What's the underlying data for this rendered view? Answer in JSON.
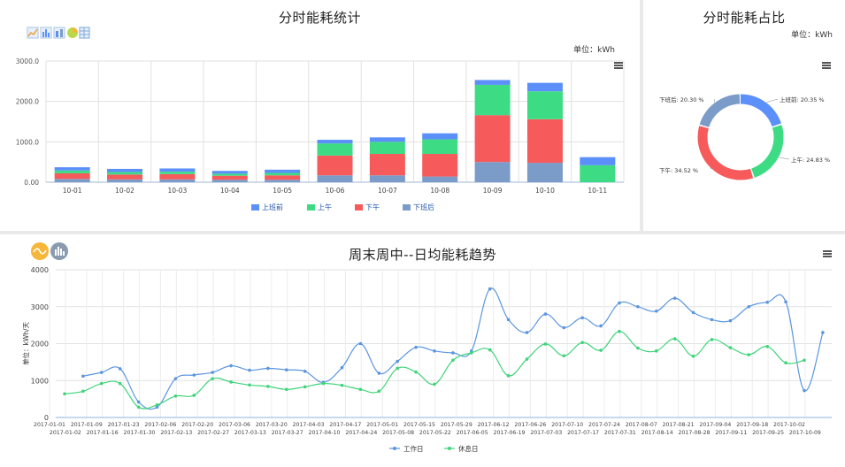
{
  "top_left": {
    "title": "分时能耗统计",
    "unit": "单位：kWh"
  },
  "top_right": {
    "title": "分时能耗占比",
    "unit": "单位：kWh"
  },
  "bottom": {
    "title": "周末周中--日均能耗趋势"
  },
  "colors": {
    "s1": "#5b8ff9",
    "s2": "#3ddc84",
    "s3": "#f65a5a",
    "s4": "#7b9cc8",
    "work": "#5b95e0",
    "rest": "#3fd47a",
    "icon_orange": "#f5b63a",
    "icon_gray": "#8a9bb0"
  },
  "chart_data": [
    {
      "type": "bar",
      "stacked": true,
      "title": "分时能耗统计",
      "categories": [
        "10-01",
        "10-02",
        "10-03",
        "10-04",
        "10-05",
        "10-06",
        "10-07",
        "10-08",
        "10-09",
        "10-10",
        "10-11"
      ],
      "series": [
        {
          "name": "下班后",
          "values": [
            80,
            70,
            70,
            60,
            60,
            170,
            170,
            140,
            500,
            480,
            0
          ]
        },
        {
          "name": "下午",
          "values": [
            140,
            120,
            130,
            100,
            110,
            490,
            530,
            560,
            1160,
            1080,
            0
          ]
        },
        {
          "name": "上午",
          "values": [
            70,
            60,
            60,
            50,
            60,
            300,
            300,
            360,
            750,
            690,
            420
          ]
        },
        {
          "name": "上班前",
          "values": [
            80,
            80,
            80,
            70,
            80,
            90,
            110,
            150,
            120,
            210,
            200
          ]
        }
      ],
      "legend_order": [
        "上班前",
        "上午",
        "下午",
        "下班后"
      ],
      "yticks": [
        "0.00",
        "1000.0",
        "2000.0",
        "3000.0"
      ],
      "ylim": [
        0,
        3000
      ],
      "legend_position": "bottom",
      "grid": true
    },
    {
      "type": "pie",
      "donut": true,
      "title": "分时能耗占比",
      "slices": [
        {
          "name": "上班前",
          "percent": 20.35,
          "label": "上班前: 20.35 %"
        },
        {
          "name": "上午",
          "percent": 24.83,
          "label": "上午: 24.83 %"
        },
        {
          "name": "下午",
          "percent": 34.52,
          "label": "下午: 34.52 %"
        },
        {
          "name": "下班后",
          "percent": 20.3,
          "label": "下班后: 20.30 %"
        }
      ]
    },
    {
      "type": "line",
      "smooth": true,
      "title": "周末周中--日均能耗趋势",
      "ylabel": "单位：kWh/天",
      "ylim": [
        0,
        4000
      ],
      "yticks": [
        "0",
        "1000",
        "2000",
        "3000",
        "4000"
      ],
      "x_labels_top": [
        "2017-01-01",
        "2017-01-09",
        "2017-01-23",
        "2017-02-06",
        "2017-02-20",
        "2017-03-06",
        "2017-03-20",
        "2017-04-03",
        "2017-04-17",
        "2017-05-01",
        "2017-05-15",
        "2017-05-29",
        "2017-06-12",
        "2017-06-26",
        "2017-07-10",
        "2017-07-24",
        "2017-08-07",
        "2017-08-21",
        "2017-09-04",
        "2017-09-18",
        "2017-10-02"
      ],
      "x_labels_bottom": [
        "2017-01-02",
        "2017-01-16",
        "2017-01-30",
        "2017-02-13",
        "2017-02-27",
        "2017-03-13",
        "2017-03-27",
        "2017-04-10",
        "2017-04-24",
        "2017-05-08",
        "2017-05-22",
        "2017-06-05",
        "2017-06-19",
        "2017-07-03",
        "2017-07-17",
        "2017-07-31",
        "2017-08-14",
        "2017-08-28",
        "2017-09-11",
        "2017-09-25",
        "2017-10-09"
      ],
      "legend_position": "bottom",
      "series": [
        {
          "name": "工作日",
          "values": [
            null,
            1120,
            1220,
            1320,
            420,
            280,
            1050,
            1150,
            1220,
            1400,
            1280,
            1330,
            1290,
            1250,
            950,
            1350,
            2000,
            1200,
            1520,
            1900,
            1800,
            1750,
            1800,
            3480,
            2650,
            2300,
            2800,
            2430,
            2700,
            2480,
            3100,
            3000,
            2880,
            3230,
            2840,
            2650,
            2620,
            3000,
            3120,
            3130,
            730,
            2300
          ]
        },
        {
          "name": "休息日",
          "values": [
            640,
            710,
            920,
            920,
            280,
            340,
            580,
            600,
            1050,
            960,
            880,
            840,
            760,
            830,
            920,
            870,
            760,
            710,
            1330,
            1230,
            900,
            1550,
            1750,
            1830,
            1130,
            1580,
            1990,
            1670,
            2030,
            1820,
            2330,
            1880,
            1800,
            2130,
            1660,
            2110,
            1890,
            1700,
            1920,
            1480,
            1550,
            null
          ]
        }
      ]
    }
  ]
}
